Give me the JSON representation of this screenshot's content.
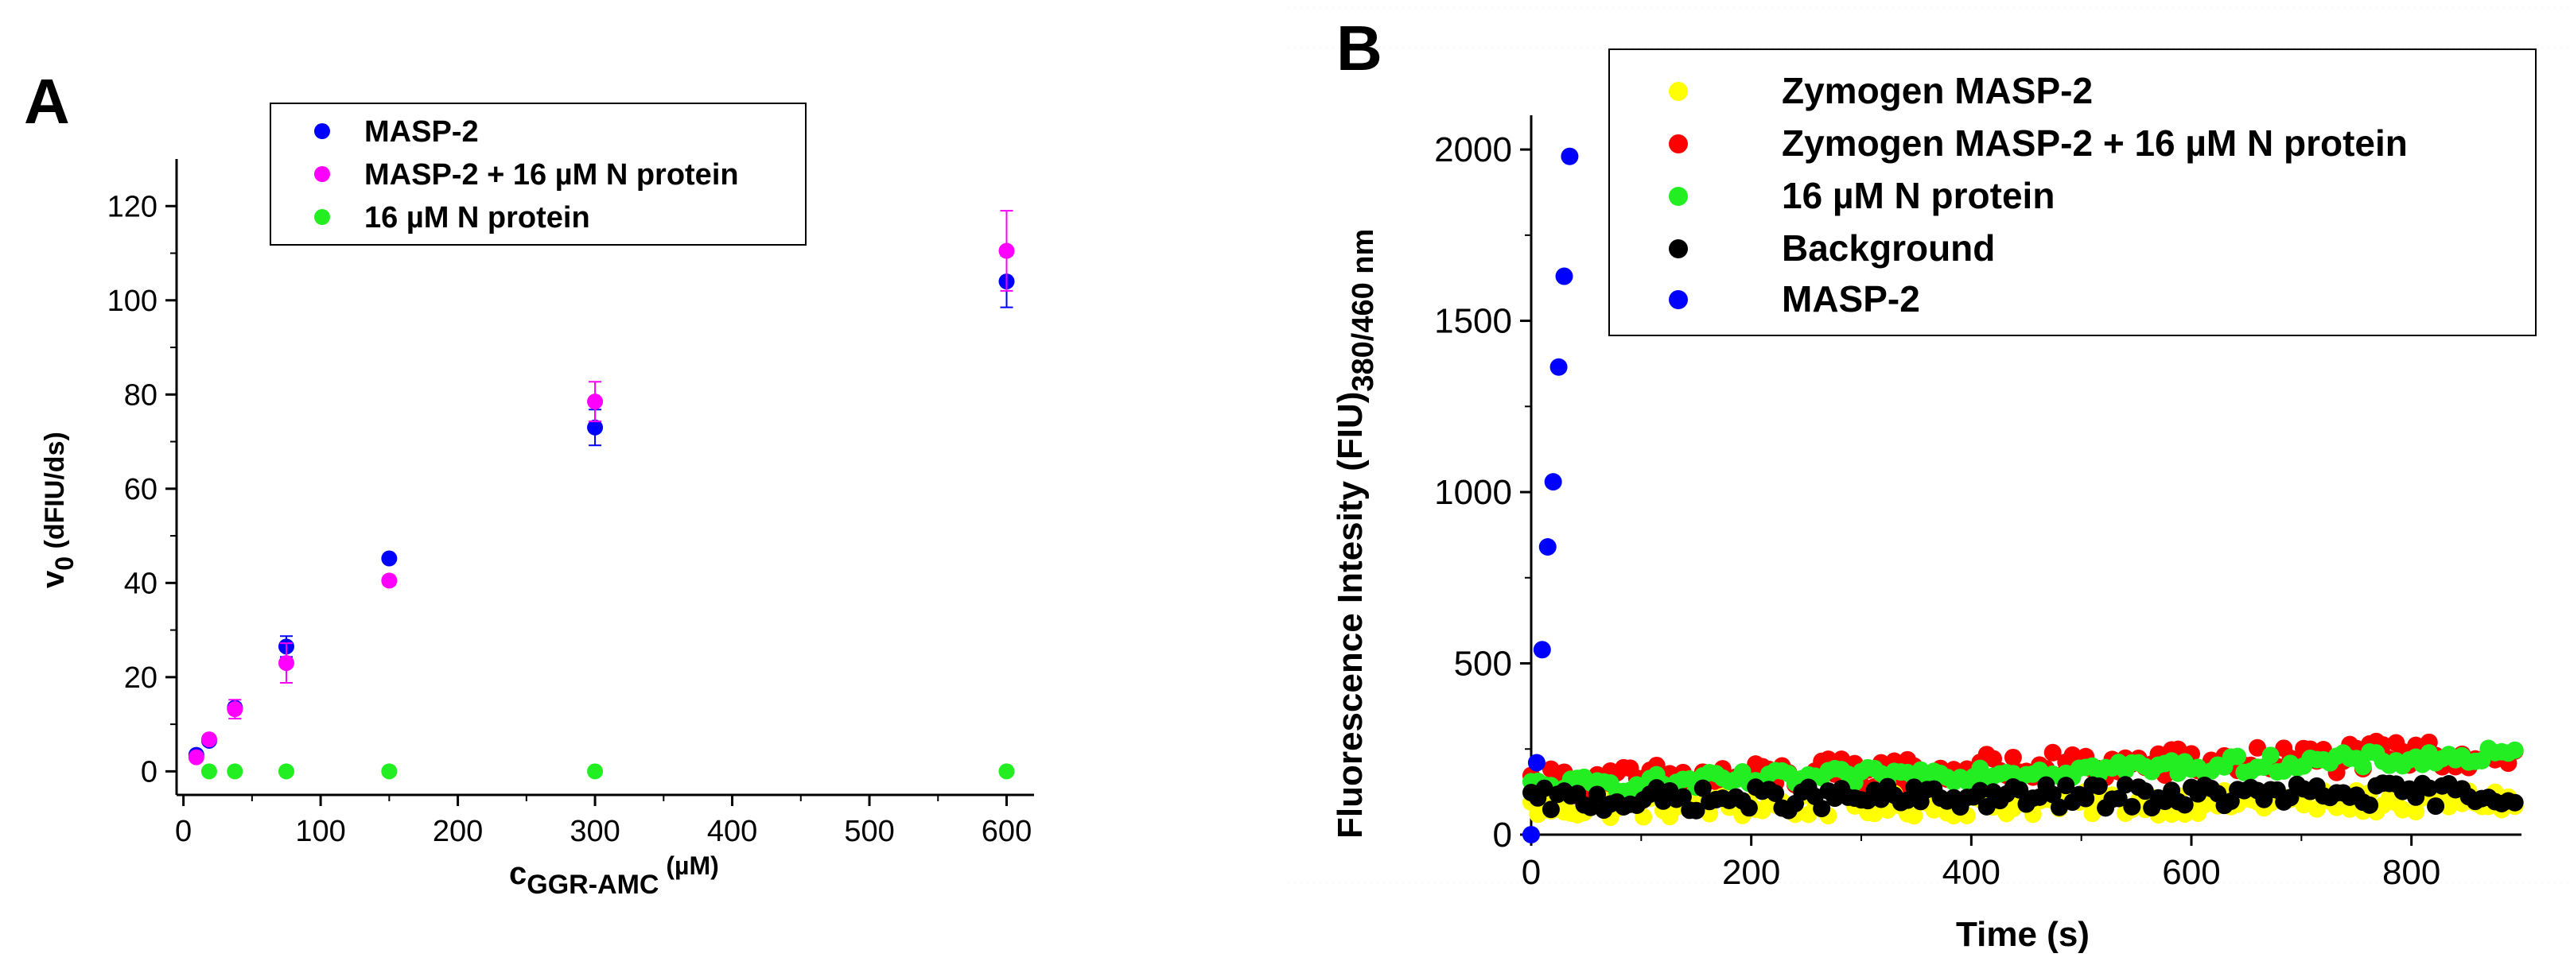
{
  "figure": {
    "panel_a_label": "A",
    "panel_b_label": "B"
  },
  "chart_data": [
    {
      "panel": "A",
      "type": "scatter",
      "xlabel_main": "c",
      "xlabel_sub": "GGR-AMC",
      "xlabel_unit": " (µM)",
      "ylabel_main": "v",
      "ylabel_sub": "0",
      "ylabel_unit": " (dFIU/ds)",
      "xlim": [
        -5,
        620
      ],
      "ylim": [
        -5,
        130
      ],
      "xticks": [
        0,
        100,
        200,
        300,
        400,
        500,
        600
      ],
      "yticks": [
        0,
        20,
        40,
        60,
        80,
        100,
        120
      ],
      "legend_position": "top-center",
      "series": [
        {
          "name": "MASP-2",
          "color": "#0000ff",
          "x": [
            9.4,
            18.75,
            37.5,
            75,
            150,
            300,
            600
          ],
          "y": [
            3.5,
            6.5,
            13.5,
            26.5,
            45.2,
            73,
            104
          ],
          "err": [
            0.5,
            0.6,
            1.0,
            2.2,
            0.8,
            3.8,
            5.5
          ]
        },
        {
          "name": "MASP-2 + 16 µM N protein",
          "color": "#ff00ff",
          "x": [
            9.4,
            18.75,
            37.5,
            75,
            150,
            300,
            600
          ],
          "y": [
            3,
            6.8,
            13.2,
            23,
            40.5,
            78.5,
            110.5
          ],
          "err": [
            0.5,
            0.6,
            2.0,
            4.2,
            1.0,
            4.2,
            8.5
          ]
        },
        {
          "name": "16 µM N protein",
          "color": "#22ee22",
          "x": [
            18.75,
            37.5,
            75,
            150,
            300,
            600
          ],
          "y": [
            0,
            0,
            0,
            0,
            0,
            0
          ],
          "err": [
            0,
            0,
            0,
            0,
            0,
            0
          ]
        }
      ]
    },
    {
      "panel": "B",
      "type": "scatter",
      "xlabel": "Time (s)",
      "ylabel_main": "Fluorescence Intesity (FIU)",
      "ylabel_sub": "380/460 nm",
      "xlim": [
        0,
        900
      ],
      "ylim": [
        0,
        2100
      ],
      "xticks": [
        0,
        200,
        400,
        600,
        800
      ],
      "yticks": [
        0,
        500,
        1000,
        1500,
        2000
      ],
      "legend_position": "top-right",
      "series": [
        {
          "name": "Zymogen MASP-2",
          "color": "#ffff00",
          "trend": [
            80,
            100
          ],
          "noise": 35
        },
        {
          "name": "Zymogen MASP-2 + 16 µM N protein",
          "color": "#ff0000",
          "trend": [
            150,
            240
          ],
          "noise": 45
        },
        {
          "name": "16 µM N protein",
          "color": "#22ee22",
          "trend": [
            140,
            230
          ],
          "noise": 25
        },
        {
          "name": "Background",
          "color": "#000000",
          "trend": [
            100,
            120
          ],
          "noise": 35
        },
        {
          "name": "MASP-2",
          "color": "#0000ff",
          "x": [
            0,
            5,
            10,
            15,
            20,
            25,
            30,
            35
          ],
          "y": [
            0,
            210,
            540,
            840,
            1030,
            1365,
            1630,
            1980
          ]
        }
      ],
      "time_step": 6,
      "time_end": 895
    }
  ]
}
